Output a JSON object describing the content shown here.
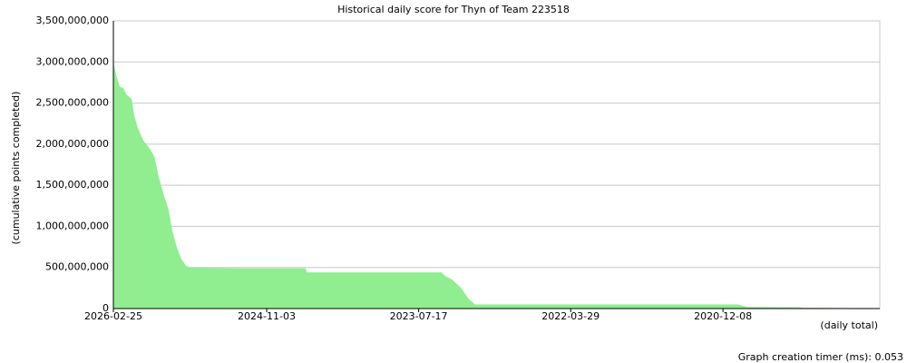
{
  "chart_data": {
    "type": "area",
    "title": "Historical daily score for Thyn of Team 223518",
    "y_label": "(cumulative points completed)",
    "x_label": "(daily total)",
    "footer": "Graph creation timer (ms): 0.053",
    "color": "#90ee90",
    "grid": true,
    "xlim": [
      "2026-02-25",
      "2019-08-06"
    ],
    "xticks": [
      "2026-02-25",
      "2024-11-03",
      "2023-07-17",
      "2022-03-29",
      "2020-12-08"
    ],
    "ylim": [
      0,
      3500000000
    ],
    "yticks": [
      {
        "value": 0,
        "label": "0"
      },
      {
        "value": 500000000,
        "label": "500,000,000"
      },
      {
        "value": 1000000000,
        "label": "1,000,000,000"
      },
      {
        "value": 1500000000,
        "label": "1,500,000,000"
      },
      {
        "value": 2000000000,
        "label": "2,000,000,000"
      },
      {
        "value": 2500000000,
        "label": "2,500,000,000"
      },
      {
        "value": 3000000000,
        "label": "3,000,000,000"
      },
      {
        "value": 3500000000,
        "label": "3,500,000,000"
      }
    ],
    "x": [
      "2026-02-25",
      "2026-02-17",
      "2026-02-05",
      "2026-01-25",
      "2026-01-14",
      "2025-12-30",
      "2025-12-22",
      "2025-12-11",
      "2025-11-24",
      "2025-11-04",
      "2025-10-20",
      "2025-10-06",
      "2025-09-22",
      "2025-09-05",
      "2025-08-25",
      "2025-08-11",
      "2025-07-27",
      "2025-07-13",
      "2025-06-29",
      "2025-02-07",
      "2024-07-04",
      "2024-07-01",
      "2023-05-07",
      "2023-04-26",
      "2023-04-03",
      "2023-03-06",
      "2023-02-11",
      "2023-01-22",
      "2020-10-21",
      "2020-09-23",
      "2020-04-14",
      "2020-03-31",
      "2019-10-27"
    ],
    "values": [
      3000000000,
      2850000000,
      2700000000,
      2680000000,
      2600000000,
      2550000000,
      2350000000,
      2200000000,
      2050000000,
      1950000000,
      1850000000,
      1600000000,
      1400000000,
      1200000000,
      950000000,
      750000000,
      600000000,
      520000000,
      500000000,
      490000000,
      490000000,
      440000000,
      440000000,
      400000000,
      350000000,
      250000000,
      120000000,
      50000000,
      50000000,
      20000000,
      15000000,
      10000000,
      5000000
    ]
  }
}
